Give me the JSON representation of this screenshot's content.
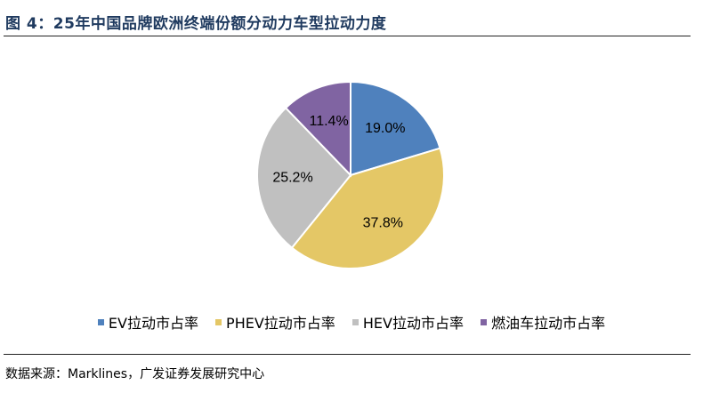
{
  "figure": {
    "title": "图 4：25年中国品牌欧洲终端份额分动力车型拉动力度",
    "source": "数据来源：Marklines，广发证券发展研究中心"
  },
  "chart_data": {
    "type": "pie",
    "title": "",
    "legend_position": "bottom",
    "slices": [
      {
        "label": "EV拉动市占率",
        "value": 19.0,
        "value_label": "19.0%",
        "color": "#4f81bd"
      },
      {
        "label": "PHEV拉动市占率",
        "value": 37.8,
        "value_label": "37.8%",
        "color": "#e4c766"
      },
      {
        "label": "HEV拉动市占率",
        "value": 25.2,
        "value_label": "25.2%",
        "color": "#c0c0c0"
      },
      {
        "label": "燃油车拉动市占率",
        "value": 11.4,
        "value_label": "11.4%",
        "color": "#8064a2"
      }
    ]
  }
}
